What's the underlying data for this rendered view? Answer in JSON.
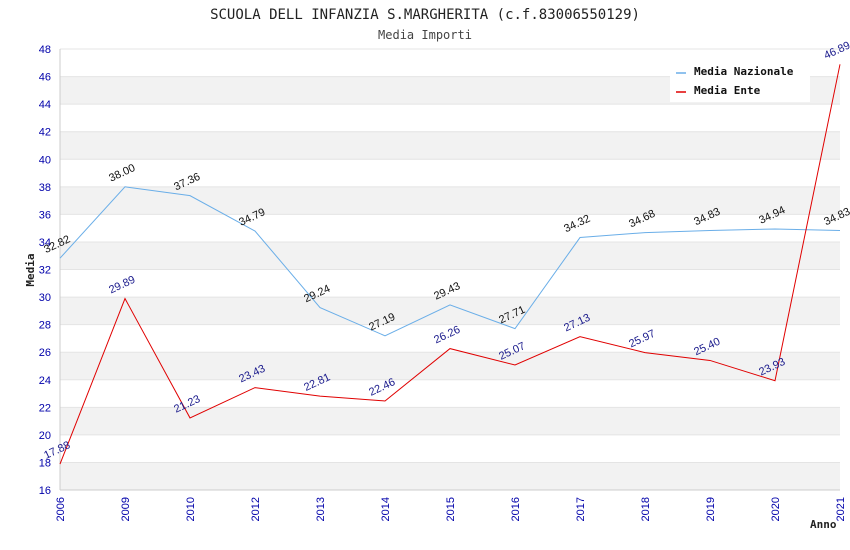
{
  "chart_data": {
    "type": "line",
    "title": "SCUOLA DELL INFANZIA S.MARGHERITA (c.f.83006550129)",
    "subtitle": "Media Importi",
    "xlabel": "Anno",
    "ylabel": "Media",
    "categories": [
      "2006",
      "2009",
      "2010",
      "2012",
      "2013",
      "2014",
      "2015",
      "2016",
      "2017",
      "2018",
      "2019",
      "2020",
      "2021"
    ],
    "ylim": [
      16,
      48
    ],
    "yticks": [
      "16",
      "18",
      "20",
      "22",
      "24",
      "26",
      "28",
      "30",
      "32",
      "34",
      "36",
      "38",
      "40",
      "42",
      "44",
      "46",
      "48"
    ],
    "grid": "horizontal alternating bands",
    "legend_position": "top-right",
    "series": [
      {
        "name": "Media Nazionale",
        "color": "#6aaee8",
        "values": [
          32.82,
          38.0,
          37.36,
          34.79,
          29.24,
          27.19,
          29.43,
          27.71,
          34.32,
          34.68,
          34.83,
          34.94,
          34.83
        ],
        "labels": [
          "32.82",
          "38.00",
          "37.36",
          "34.79",
          "29.24",
          "27.19",
          "29.43",
          "27.71",
          "34.32",
          "34.68",
          "34.83",
          "34.94",
          "34.83"
        ]
      },
      {
        "name": "Media Ente",
        "color": "#e00000",
        "values": [
          17.88,
          29.89,
          21.23,
          23.43,
          22.81,
          22.46,
          26.26,
          25.07,
          27.13,
          25.97,
          25.4,
          23.93,
          46.89
        ],
        "labels": [
          "17.88",
          "29.89",
          "21.23",
          "23.43",
          "22.81",
          "22.46",
          "26.26",
          "25.07",
          "27.13",
          "25.97",
          "25.40",
          "23.93",
          "46.89"
        ]
      }
    ]
  }
}
